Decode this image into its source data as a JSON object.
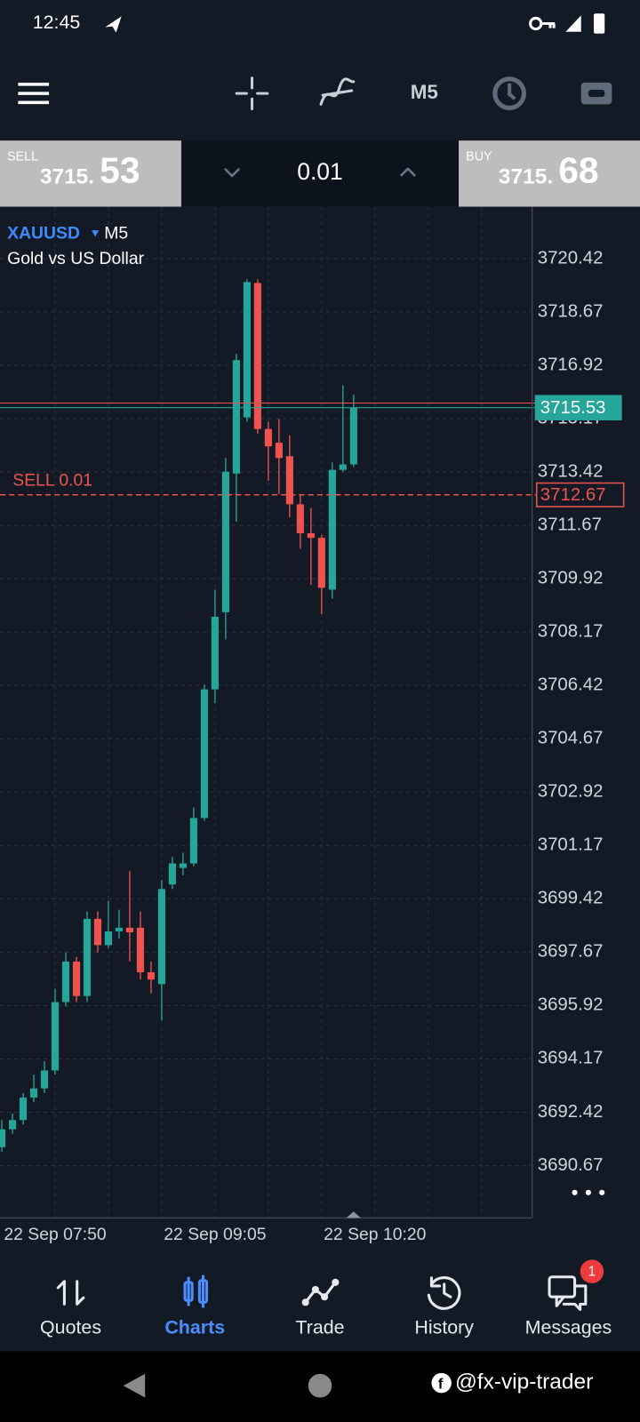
{
  "status_bar": {
    "time": "12:45"
  },
  "toolbar": {
    "timeframe": "M5"
  },
  "trade_panel": {
    "sell_label": "SELL",
    "sell_price_main": "3715.",
    "sell_price_big": "53",
    "volume": "0.01",
    "buy_label": "BUY",
    "buy_price_main": "3715.",
    "buy_price_big": "68"
  },
  "chart": {
    "type": "candlestick",
    "symbol": "XAUUSD",
    "timeframe": "M5",
    "description": "Gold vs US Dollar",
    "up_color": "#26a69a",
    "down_color": "#ef5350",
    "open": [
      3691.27,
      3691.86,
      3692.16,
      3692.9,
      3693.2,
      3693.79,
      3696.03,
      3697.36,
      3696.23,
      3698.76,
      3697.9,
      3698.35,
      3698.47,
      3698.47,
      3697.01,
      3696.62,
      3699.89,
      3700.43,
      3700.58,
      3702.07,
      3706.29,
      3708.82,
      3713.37,
      3715.21,
      3719.62,
      3714.83,
      3714.38,
      3713.94,
      3712.36,
      3711.41,
      3711.26,
      3709.56,
      3713.49,
      3713.67
    ],
    "high": [
      3692.16,
      3692.37,
      3693.05,
      3693.65,
      3694.09,
      3696.47,
      3697.66,
      3697.51,
      3699.0,
      3699.0,
      3699.36,
      3699.06,
      3700.34,
      3699.0,
      3697.36,
      3700.04,
      3700.79,
      3700.93,
      3702.42,
      3706.44,
      3709.56,
      3713.88,
      3717.3,
      3719.74,
      3719.74,
      3715.07,
      3715.16,
      3714.62,
      3712.69,
      3712.24,
      3711.35,
      3713.73,
      3716.26,
      3715.96
    ],
    "low": [
      3691.12,
      3691.71,
      3692.01,
      3692.75,
      3693.05,
      3693.65,
      3695.88,
      3696.03,
      3696.03,
      3697.66,
      3697.81,
      3698.11,
      3697.36,
      3696.77,
      3696.32,
      3695.43,
      3699.74,
      3700.19,
      3700.49,
      3701.98,
      3705.84,
      3707.93,
      3711.79,
      3715.07,
      3714.68,
      3713.13,
      3712.69,
      3711.94,
      3710.9,
      3709.71,
      3708.76,
      3709.26,
      3713.43,
      3713.58
    ],
    "close": [
      3691.86,
      3692.16,
      3692.9,
      3693.2,
      3693.79,
      3696.03,
      3697.36,
      3696.23,
      3698.76,
      3697.9,
      3698.35,
      3698.47,
      3698.32,
      3697.01,
      3696.77,
      3699.74,
      3700.58,
      3700.58,
      3702.07,
      3706.29,
      3708.67,
      3713.43,
      3717.09,
      3719.65,
      3714.83,
      3714.26,
      3713.88,
      3712.36,
      3711.41,
      3711.26,
      3709.62,
      3713.49,
      3713.67,
      3715.53
    ],
    "ylim": [
      3688.95,
      3722.12
    ],
    "yticks": [
      3720.42,
      3718.67,
      3716.92,
      3715.17,
      3713.42,
      3711.67,
      3709.92,
      3708.17,
      3706.42,
      3704.67,
      3702.92,
      3701.17,
      3699.42,
      3697.67,
      3695.92,
      3694.17,
      3692.42,
      3690.67
    ],
    "bid": 3715.53,
    "ask": 3715.68,
    "position": {
      "label": "SELL 0.01",
      "price": 3712.67
    },
    "x_labels": [
      "22 Sep 07:50",
      "22 Sep 09:05",
      "22 Sep 10:20"
    ]
  },
  "nav": {
    "items": [
      "Quotes",
      "Charts",
      "Trade",
      "History",
      "Messages"
    ],
    "active": 1,
    "badge": 1
  },
  "watermark": "@fx-vip-trader"
}
